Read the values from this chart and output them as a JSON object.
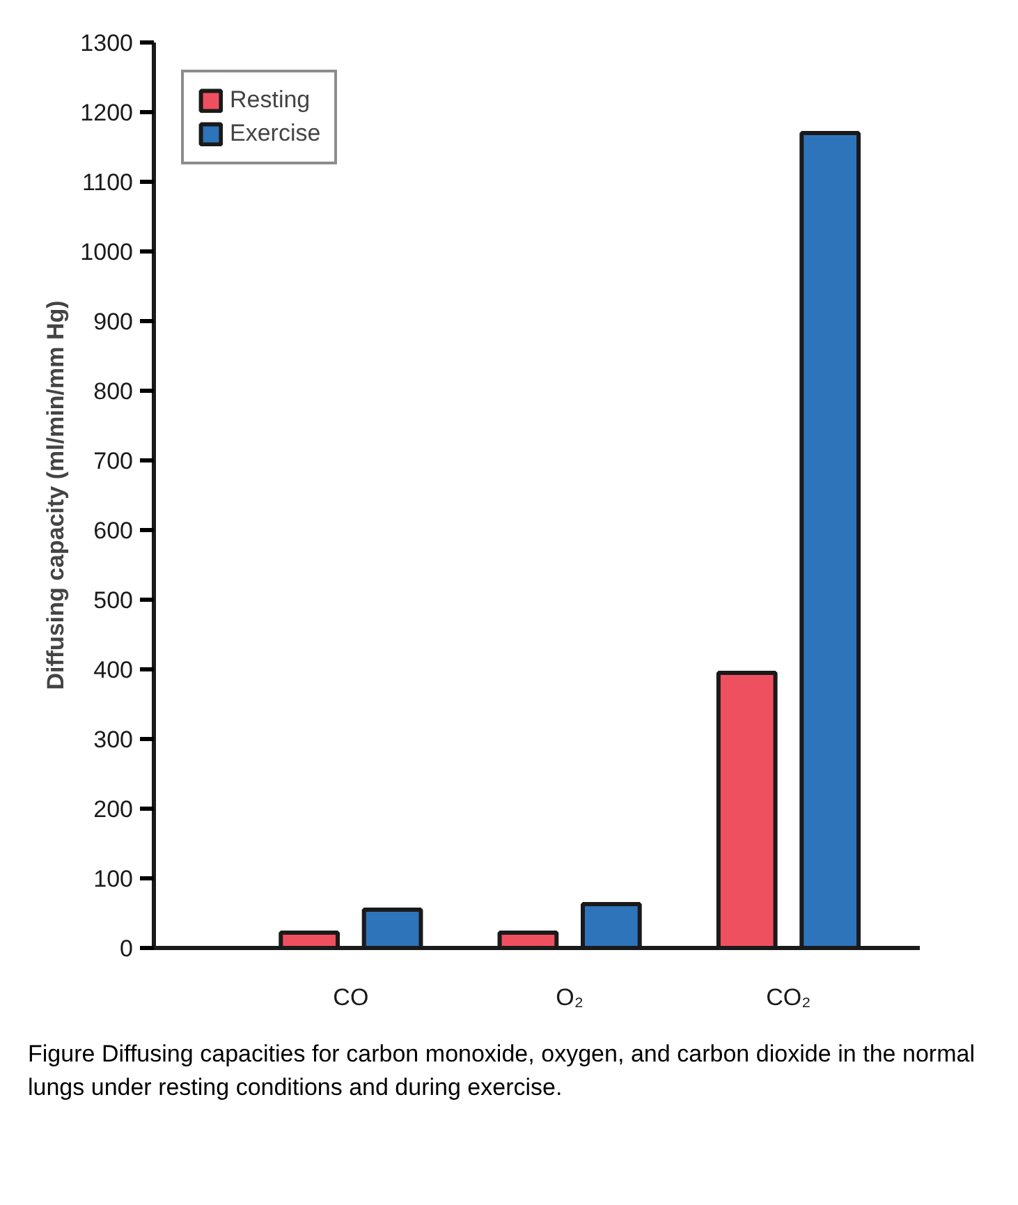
{
  "chart_data": {
    "type": "bar",
    "ylabel": "Diffusing capacity (ml/min/mm Hg)",
    "categories": [
      "CO",
      "O₂",
      "CO₂"
    ],
    "series": [
      {
        "name": "Resting",
        "color": "#ef5060",
        "values": [
          22,
          22,
          395
        ]
      },
      {
        "name": "Exercise",
        "color": "#2e74bb",
        "values": [
          55,
          63,
          1170
        ]
      }
    ],
    "ylim": [
      0,
      1300
    ],
    "yticks": [
      0,
      100,
      200,
      300,
      400,
      500,
      600,
      700,
      800,
      900,
      1000,
      1100,
      1200,
      1300
    ],
    "grid": false,
    "legend": "top left",
    "annotations": [
      "Figure Diffusing capacities for carbon monoxide, oxygen, and carbon dioxide in the normal lungs under resting conditions and during exercise."
    ]
  }
}
